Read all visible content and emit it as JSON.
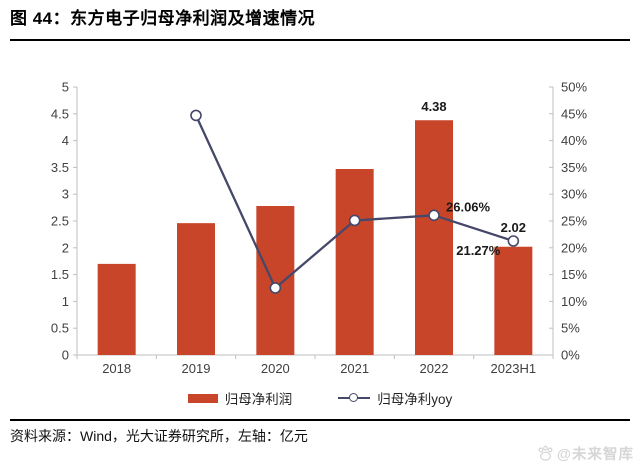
{
  "header": {
    "title": "图 44：东方电子归母净利润及增速情况"
  },
  "colors": {
    "bar": "#C8452A",
    "line": "#464869",
    "axis": "#BFBFBF",
    "tick_text": "#404040"
  },
  "chart_data": {
    "type": "combo-bar-line",
    "title": "东方电子归母净利润及增速情况",
    "categories": [
      "2018",
      "2019",
      "2020",
      "2021",
      "2022",
      "2023H1"
    ],
    "series": [
      {
        "name": "归母净利润",
        "type": "bar",
        "axis": "left",
        "color": "#C8452A",
        "values": [
          1.7,
          2.46,
          2.78,
          3.47,
          4.38,
          2.02
        ]
      },
      {
        "name": "归母净利yoy",
        "type": "line",
        "axis": "right",
        "color": "#464869",
        "values": [
          null,
          44.7,
          12.5,
          25.1,
          26.06,
          21.27
        ]
      }
    ],
    "left_axis": {
      "unit": "亿元",
      "min": 0,
      "max": 5,
      "ticks": [
        "0",
        "0.5",
        "1",
        "1.5",
        "2",
        "2.5",
        "3",
        "3.5",
        "4",
        "4.5",
        "5"
      ]
    },
    "right_axis": {
      "unit": "%",
      "min": 0,
      "max": 50,
      "ticks": [
        "0%",
        "5%",
        "10%",
        "15%",
        "20%",
        "25%",
        "30%",
        "35%",
        "40%",
        "45%",
        "50%"
      ]
    },
    "data_labels": [
      {
        "category": "2022",
        "text": "4.38",
        "position": "above-bar"
      },
      {
        "category": "2023H1",
        "text": "2.02",
        "position": "above-point"
      },
      {
        "category": "2022",
        "text": "26.06%",
        "position": "right-of-point"
      },
      {
        "category": "2023H1",
        "text": "21.27%",
        "position": "left-of-point"
      }
    ],
    "grid": false,
    "legend_position": "bottom"
  },
  "footer": {
    "source": "资料来源：Wind，光大证券研究所，左轴：亿元",
    "watermark": "@未来智库"
  }
}
